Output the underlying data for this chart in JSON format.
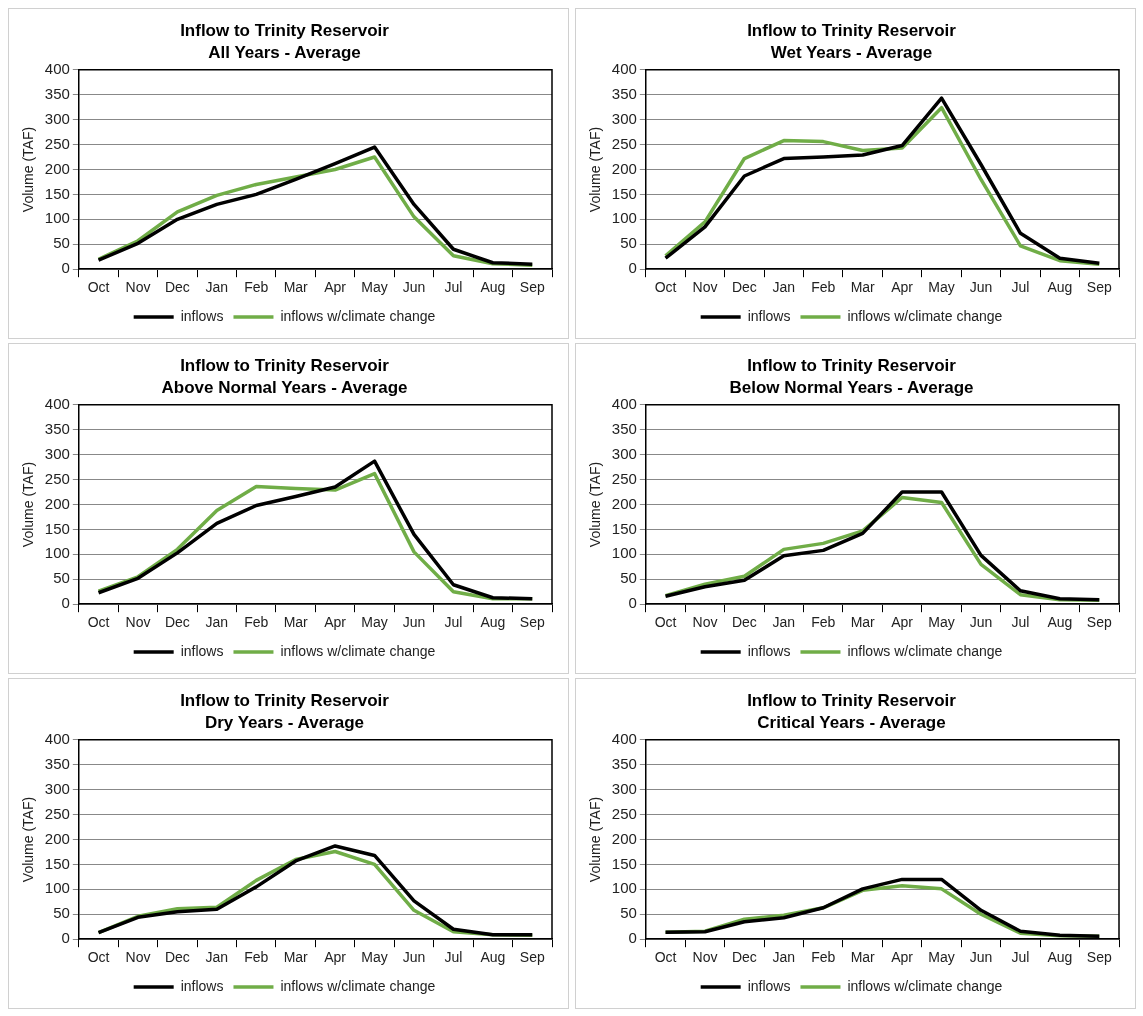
{
  "chart_data": [
    {
      "type": "line",
      "title": "Inflow to Trinity Reservoir",
      "subtitle": "All Years - Average",
      "ylabel": "Volume (TAF)",
      "categories": [
        "Oct",
        "Nov",
        "Dec",
        "Jan",
        "Feb",
        "Mar",
        "Apr",
        "May",
        "Jun",
        "Jul",
        "Aug",
        "Sep"
      ],
      "ylim": [
        0,
        400
      ],
      "yticks": [
        0,
        50,
        100,
        150,
        200,
        250,
        300,
        350,
        400
      ],
      "grid": "y",
      "legend": "bottom",
      "marker": "none",
      "line_style": "solid",
      "series": [
        {
          "name": "inflows",
          "color": "#000000",
          "values": [
            18,
            52,
            100,
            130,
            150,
            180,
            212,
            245,
            130,
            40,
            13,
            10
          ]
        },
        {
          "name": "inflows w/climate change",
          "color": "#70ad47",
          "values": [
            20,
            57,
            115,
            148,
            170,
            185,
            200,
            225,
            105,
            27,
            11,
            8
          ]
        }
      ]
    },
    {
      "type": "line",
      "title": "Inflow to Trinity Reservoir",
      "subtitle": "Wet Years - Average",
      "ylabel": "Volume (TAF)",
      "categories": [
        "Oct",
        "Nov",
        "Dec",
        "Jan",
        "Feb",
        "Mar",
        "Apr",
        "May",
        "Jun",
        "Jul",
        "Aug",
        "Sep"
      ],
      "ylim": [
        0,
        400
      ],
      "yticks": [
        0,
        50,
        100,
        150,
        200,
        250,
        300,
        350,
        400
      ],
      "grid": "y",
      "legend": "bottom",
      "marker": "none",
      "line_style": "solid",
      "series": [
        {
          "name": "inflows",
          "color": "#000000",
          "values": [
            22,
            85,
            187,
            222,
            225,
            229,
            248,
            343,
            210,
            72,
            22,
            12
          ]
        },
        {
          "name": "inflows w/climate change",
          "color": "#70ad47",
          "values": [
            27,
            95,
            222,
            258,
            256,
            238,
            243,
            324,
            180,
            47,
            17,
            10
          ]
        }
      ]
    },
    {
      "type": "line",
      "title": "Inflow to Trinity Reservoir",
      "subtitle": "Above Normal Years - Average",
      "ylabel": "Volume (TAF)",
      "categories": [
        "Oct",
        "Nov",
        "Dec",
        "Jan",
        "Feb",
        "Mar",
        "Apr",
        "May",
        "Jun",
        "Jul",
        "Aug",
        "Sep"
      ],
      "ylim": [
        0,
        400
      ],
      "yticks": [
        0,
        50,
        100,
        150,
        200,
        250,
        300,
        350,
        400
      ],
      "grid": "y",
      "legend": "bottom",
      "marker": "none",
      "line_style": "solid",
      "series": [
        {
          "name": "inflows",
          "color": "#000000",
          "values": [
            23,
            52,
            103,
            162,
            198,
            216,
            235,
            287,
            140,
            39,
            13,
            11
          ]
        },
        {
          "name": "inflows w/climate change",
          "color": "#70ad47",
          "values": [
            26,
            55,
            110,
            188,
            236,
            232,
            229,
            262,
            105,
            25,
            11,
            11
          ]
        }
      ]
    },
    {
      "type": "line",
      "title": "Inflow to Trinity Reservoir",
      "subtitle": "Below Normal Years - Average",
      "ylabel": "Volume (TAF)",
      "categories": [
        "Oct",
        "Nov",
        "Dec",
        "Jan",
        "Feb",
        "Mar",
        "Apr",
        "May",
        "Jun",
        "Jul",
        "Aug",
        "Sep"
      ],
      "ylim": [
        0,
        400
      ],
      "yticks": [
        0,
        50,
        100,
        150,
        200,
        250,
        300,
        350,
        400
      ],
      "grid": "y",
      "legend": "bottom",
      "marker": "none",
      "line_style": "solid",
      "series": [
        {
          "name": "inflows",
          "color": "#000000",
          "values": [
            16,
            35,
            48,
            97,
            108,
            142,
            225,
            225,
            98,
            27,
            11,
            9
          ]
        },
        {
          "name": "inflows w/climate change",
          "color": "#70ad47",
          "values": [
            17,
            40,
            56,
            110,
            122,
            147,
            214,
            204,
            80,
            19,
            9,
            8
          ]
        }
      ]
    },
    {
      "type": "line",
      "title": "Inflow to Trinity Reservoir",
      "subtitle": "Dry Years - Average",
      "ylabel": "Volume (TAF)",
      "categories": [
        "Oct",
        "Nov",
        "Dec",
        "Jan",
        "Feb",
        "Mar",
        "Apr",
        "May",
        "Jun",
        "Jul",
        "Aug",
        "Sep"
      ],
      "ylim": [
        0,
        400
      ],
      "yticks": [
        0,
        50,
        100,
        150,
        200,
        250,
        300,
        350,
        400
      ],
      "grid": "y",
      "legend": "bottom",
      "marker": "none",
      "line_style": "solid",
      "series": [
        {
          "name": "inflows",
          "color": "#000000",
          "values": [
            13,
            44,
            55,
            60,
            105,
            157,
            187,
            168,
            77,
            20,
            9,
            9
          ]
        },
        {
          "name": "inflows w/climate change",
          "color": "#70ad47",
          "values": [
            13,
            46,
            61,
            64,
            118,
            160,
            176,
            150,
            58,
            15,
            9,
            8
          ]
        }
      ]
    },
    {
      "type": "line",
      "title": "Inflow to Trinity Reservoir",
      "subtitle": "Critical Years - Average",
      "ylabel": "Volume (TAF)",
      "categories": [
        "Oct",
        "Nov",
        "Dec",
        "Jan",
        "Feb",
        "Mar",
        "Apr",
        "May",
        "Jun",
        "Jul",
        "Aug",
        "Sep"
      ],
      "ylim": [
        0,
        400
      ],
      "yticks": [
        0,
        50,
        100,
        150,
        200,
        250,
        300,
        350,
        400
      ],
      "grid": "y",
      "legend": "bottom",
      "marker": "none",
      "line_style": "solid",
      "series": [
        {
          "name": "inflows",
          "color": "#000000",
          "values": [
            14,
            15,
            35,
            43,
            63,
            101,
            120,
            120,
            58,
            16,
            8,
            6
          ]
        },
        {
          "name": "inflows w/climate change",
          "color": "#70ad47",
          "values": [
            14,
            16,
            40,
            48,
            63,
            98,
            107,
            101,
            50,
            12,
            7,
            6
          ]
        }
      ]
    }
  ]
}
